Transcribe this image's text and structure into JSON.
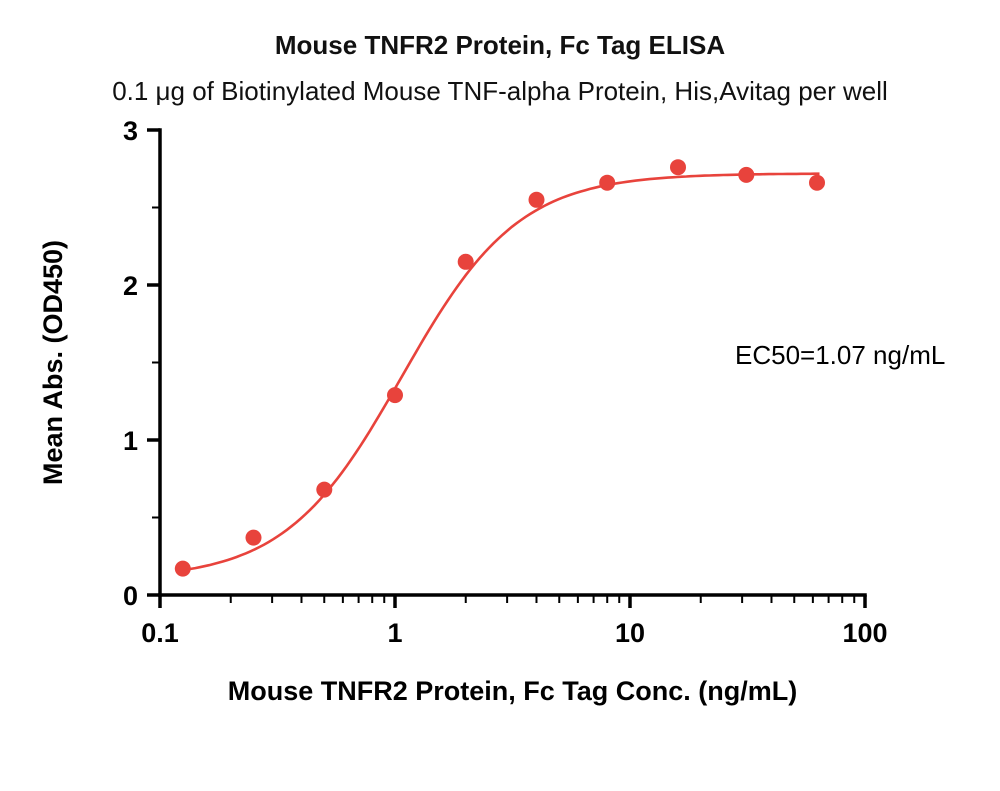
{
  "header": {
    "title": "Mouse TNFR2 Protein, Fc Tag ELISA",
    "subtitle": "0.1 μg of Biotinylated Mouse TNF-alpha Protein, His,Avitag per well"
  },
  "chart_data": {
    "type": "scatter",
    "title": "Mouse TNFR2 Protein, Fc Tag ELISA",
    "subtitle": "0.1 μg of Biotinylated Mouse TNF-alpha Protein, His,Avitag per well",
    "xlabel": "Mouse TNFR2 Protein, Fc Tag Conc. (ng/mL)",
    "ylabel": "Mean Abs. (OD450)",
    "x_scale": "log10",
    "xlim": [
      0.1,
      100
    ],
    "ylim": [
      0,
      3
    ],
    "x_ticks": [
      0.1,
      1,
      10,
      100
    ],
    "x_tick_labels": [
      "0.1",
      "1",
      "10",
      "100"
    ],
    "y_ticks": [
      0,
      1,
      2,
      3
    ],
    "y_tick_labels": [
      "0",
      "1",
      "2",
      "3"
    ],
    "grid": false,
    "legend": "none",
    "series": [
      {
        "name": "Mouse TNFR2 Protein, Fc Tag",
        "color": "#e8433c",
        "x": [
          0.125,
          0.25,
          0.5,
          1,
          2,
          4,
          8,
          16,
          31.25,
          62.5
        ],
        "y": [
          0.17,
          0.37,
          0.68,
          1.29,
          2.15,
          2.55,
          2.66,
          2.76,
          2.71,
          2.66
        ]
      }
    ],
    "fit": {
      "model": "4PL-sigmoid",
      "bottom": 0.1,
      "top": 2.72,
      "ec50": 1.07,
      "hill": 1.75
    },
    "annotation": "EC50=1.07 ng/mL"
  }
}
